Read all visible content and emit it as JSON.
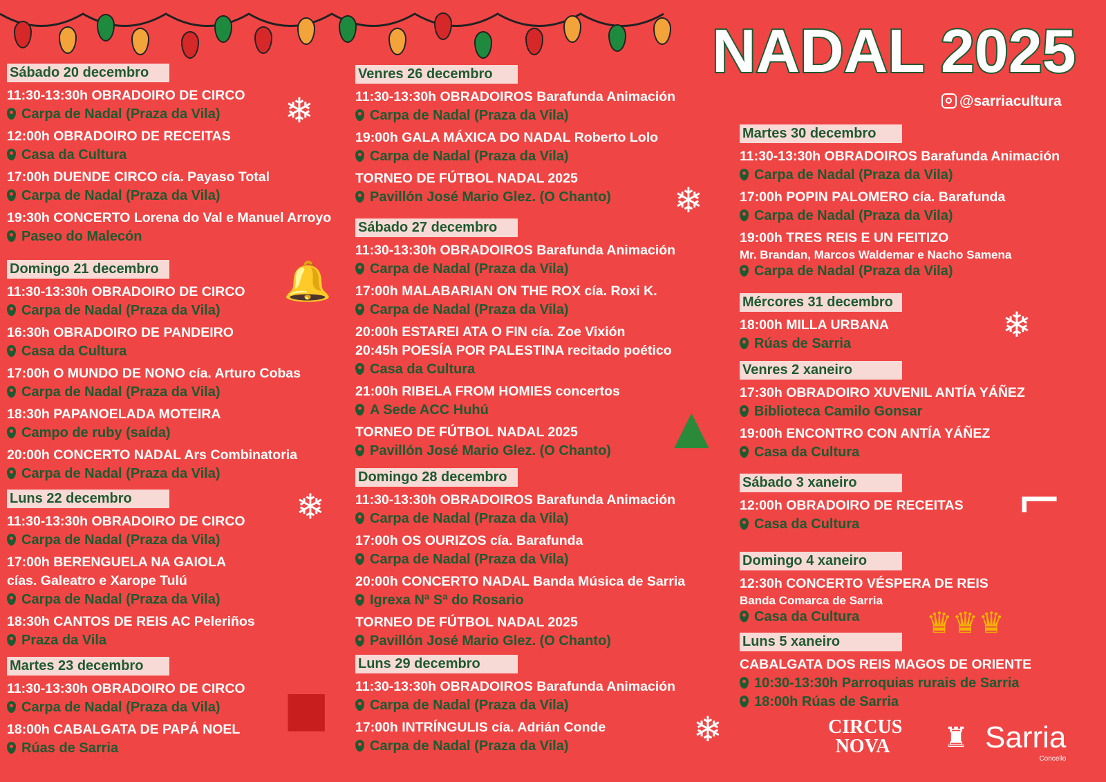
{
  "header": {
    "title": "NADAL 2025",
    "instagram": "@sarriacultura"
  },
  "colors": {
    "background": "#f04545",
    "green": "#1e5a30",
    "header_bg": "#f7d9d6"
  },
  "columns": [
    {
      "days": [
        {
          "label": "Sábado 20 decembro",
          "events": [
            [
              [
                "t",
                "11:30-13:30h OBRADOIRO DE CIRCO"
              ],
              [
                "l",
                "Carpa de Nadal (Praza da Vila)"
              ]
            ],
            [
              [
                "t",
                "12:00h OBRADOIRO DE RECEITAS"
              ],
              [
                "l",
                "Casa da Cultura"
              ]
            ],
            [
              [
                "t",
                "17:00h DUENDE CIRCO cía. Payaso Total"
              ],
              [
                "l",
                "Carpa de Nadal (Praza da Vila)"
              ]
            ],
            [
              [
                "t",
                "19:30h CONCERTO Lorena do Val e Manuel Arroyo"
              ],
              [
                "l",
                "Paseo do Malecón"
              ]
            ]
          ]
        },
        {
          "label": "Domingo 21 decembro",
          "events": [
            [
              [
                "t",
                "11:30-13:30h OBRADOIRO DE CIRCO"
              ],
              [
                "l",
                "Carpa de Nadal (Praza da Vila)"
              ]
            ],
            [
              [
                "t",
                "16:30h OBRADOIRO DE PANDEIRO"
              ],
              [
                "l",
                "Casa da Cultura"
              ]
            ],
            [
              [
                "t",
                "17:00h O MUNDO DE NONO cía. Arturo Cobas"
              ],
              [
                "l",
                "Carpa de Nadal (Praza da Vila)"
              ]
            ],
            [
              [
                "t",
                "18:30h PAPANOELADA MOTEIRA"
              ],
              [
                "l",
                "Campo de ruby (saída)"
              ]
            ],
            [
              [
                "t",
                "20:00h CONCERTO NADAL Ars Combinatoria"
              ],
              [
                "l",
                "Carpa de Nadal (Praza da Vila)"
              ]
            ]
          ]
        },
        {
          "label": "Luns 22 decembro",
          "events": [
            [
              [
                "t",
                "11:30-13:30h OBRADOIRO DE CIRCO"
              ],
              [
                "l",
                "Carpa de Nadal (Praza da Vila)"
              ]
            ],
            [
              [
                "t",
                "17:00h BERENGUELA NA GAIOLA"
              ],
              [
                "t",
                "cías. Galeatro e Xarope Tulú"
              ],
              [
                "l",
                "Carpa de Nadal (Praza da Vila)"
              ]
            ],
            [
              [
                "t",
                "18:30h CANTOS DE REIS AC Peleriños"
              ],
              [
                "l",
                "Praza da Vila"
              ]
            ]
          ]
        },
        {
          "label": "Martes 23 decembro",
          "events": [
            [
              [
                "t",
                "11:30-13:30h OBRADOIRO DE CIRCO"
              ],
              [
                "l",
                "Carpa de Nadal (Praza da Vila)"
              ]
            ],
            [
              [
                "t",
                "18:00h CABALGATA DE PAPÁ NOEL"
              ],
              [
                "l",
                "Rúas de Sarria"
              ]
            ]
          ]
        }
      ]
    },
    {
      "days": [
        {
          "label": "Venres 26 decembro",
          "events": [
            [
              [
                "t",
                "11:30-13:30h OBRADOIROS Barafunda Animación"
              ],
              [
                "l",
                "Carpa de Nadal (Praza da Vila)"
              ]
            ],
            [
              [
                "t",
                "19:00h GALA MÁXICA DO NADAL Roberto Lolo"
              ],
              [
                "l",
                "Carpa de Nadal (Praza da Vila)"
              ]
            ],
            [
              [
                "t",
                "TORNEO DE FÚTBOL NADAL 2025"
              ],
              [
                "l",
                "Pavillón José Mario Glez. (O Chanto)"
              ]
            ]
          ]
        },
        {
          "label": "Sábado 27 decembro",
          "events": [
            [
              [
                "t",
                "11:30-13:30h OBRADOIROS Barafunda Animación"
              ],
              [
                "l",
                "Carpa de Nadal (Praza da Vila)"
              ]
            ],
            [
              [
                "t",
                "17:00h MALABARIAN ON THE ROX cía. Roxi K."
              ],
              [
                "l",
                "Carpa de Nadal (Praza da Vila)"
              ]
            ],
            [
              [
                "t",
                "20:00h ESTAREI ATA O FIN cía. Zoe Vixión"
              ],
              [
                "t",
                "20:45h POESÍA POR PALESTINA recitado poético"
              ],
              [
                "l",
                "Casa da Cultura"
              ]
            ],
            [
              [
                "t",
                "21:00h RIBELA FROM HOMIES concertos"
              ],
              [
                "l",
                "A Sede ACC Huhú"
              ]
            ],
            [
              [
                "t",
                "TORNEO DE FÚTBOL NADAL 2025"
              ],
              [
                "l",
                "Pavillón José Mario Glez. (O Chanto)"
              ]
            ]
          ]
        },
        {
          "label": "Domingo 28 decembro",
          "events": [
            [
              [
                "t",
                "11:30-13:30h OBRADOIROS Barafunda Animación"
              ],
              [
                "l",
                "Carpa de Nadal (Praza da Vila)"
              ]
            ],
            [
              [
                "t",
                "17:00h OS OURIZOS cía. Barafunda"
              ],
              [
                "l",
                "Carpa de Nadal (Praza da Vila)"
              ]
            ],
            [
              [
                "t",
                "20:00h CONCERTO NADAL Banda Música de Sarria"
              ],
              [
                "l",
                "Igrexa Nª Sª do Rosario"
              ]
            ],
            [
              [
                "t",
                "TORNEO DE FÚTBOL NADAL 2025"
              ],
              [
                "l",
                "Pavillón José Mario Glez. (O Chanto)"
              ]
            ]
          ]
        },
        {
          "label": "Luns 29 decembro",
          "events": [
            [
              [
                "t",
                "11:30-13:30h OBRADOIROS Barafunda Animación"
              ],
              [
                "l",
                "Carpa de Nadal (Praza da Vila)"
              ]
            ],
            [
              [
                "t",
                "17:00h INTRÍNGULIS cía. Adrián Conde"
              ],
              [
                "l",
                "Carpa de Nadal (Praza da Vila)"
              ]
            ]
          ]
        }
      ]
    },
    {
      "days": [
        {
          "label": "Martes 30 decembro",
          "events": [
            [
              [
                "t",
                "11:30-13:30h OBRADOIROS Barafunda Animación"
              ],
              [
                "l",
                "Carpa de Nadal (Praza da Vila)"
              ]
            ],
            [
              [
                "t",
                "17:00h POPIN PALOMERO cía. Barafunda"
              ],
              [
                "l",
                "Carpa de Nadal (Praza da Vila)"
              ]
            ],
            [
              [
                "t",
                "19:00h TRES REIS E UN FEITIZO"
              ],
              [
                "s",
                "Mr. Brandan, Marcos Waldemar e Nacho Samena"
              ],
              [
                "l",
                "Carpa de Nadal (Praza da Vila)"
              ]
            ]
          ]
        },
        {
          "label": "Mércores 31 decembro",
          "events": [
            [
              [
                "t",
                "18:00h MILLA URBANA"
              ],
              [
                "l",
                "Rúas de Sarria"
              ]
            ]
          ]
        },
        {
          "label": "Venres 2 xaneiro",
          "events": [
            [
              [
                "t",
                "17:30h OBRADOIRO XUVENIL ANTÍA YÁÑEZ"
              ],
              [
                "l",
                "Biblioteca Camilo Gonsar"
              ]
            ],
            [
              [
                "t",
                "19:00h ENCONTRO CON ANTÍA YÁÑEZ"
              ],
              [
                "l",
                "Casa da Cultura"
              ]
            ]
          ]
        },
        {
          "label": "Sábado 3 xaneiro",
          "events": [
            [
              [
                "t",
                "12:00h OBRADOIRO DE RECEITAS"
              ],
              [
                "l",
                "Casa da Cultura"
              ]
            ]
          ]
        },
        {
          "label": "Domingo 4 xaneiro",
          "events": [
            [
              [
                "t",
                "12:30h CONCERTO VÉSPERA DE REIS"
              ],
              [
                "s",
                "Banda Comarca de Sarria"
              ],
              [
                "l",
                "Casa da Cultura"
              ]
            ]
          ]
        },
        {
          "label": "Luns 5 xaneiro",
          "events": [
            [
              [
                "t",
                "CABALGATA DOS REIS MAGOS DE ORIENTE"
              ],
              [
                "l",
                "10:30-13:30h Parroquias rurais de Sarria"
              ],
              [
                "l",
                "18:00h Rúas de Sarria"
              ]
            ]
          ]
        }
      ]
    }
  ],
  "logos": {
    "circus_nova": "CIRCUS NOVA",
    "sarria": "Sarria",
    "sarria_sub": "Concello"
  }
}
